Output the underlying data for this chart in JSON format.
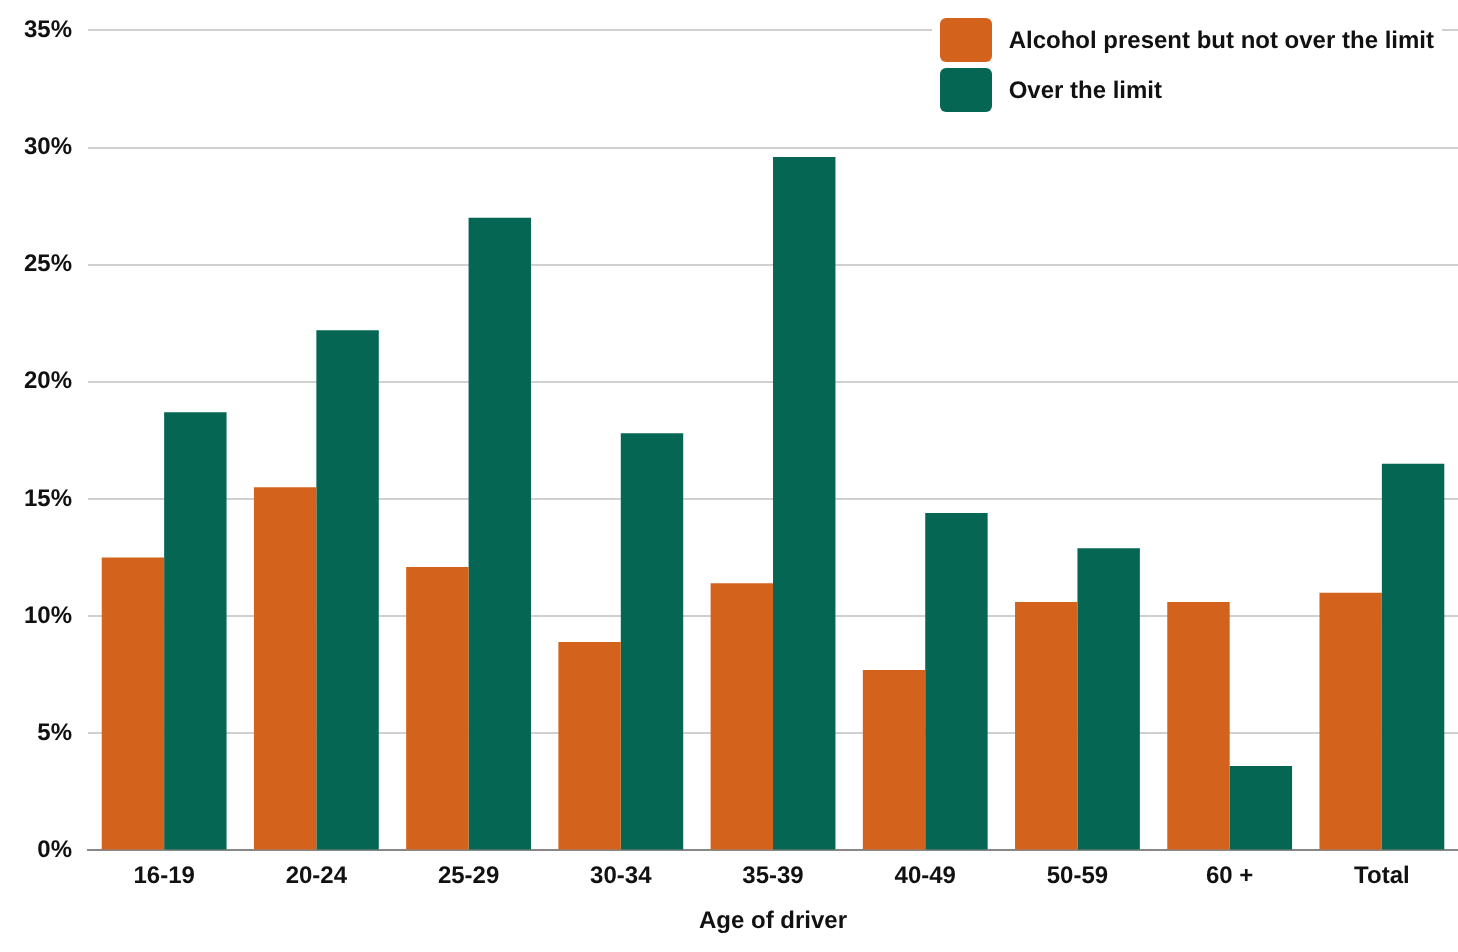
{
  "chart_data": {
    "type": "bar",
    "xlabel": "Age of driver",
    "categories": [
      "16-19",
      "20-24",
      "25-29",
      "30-34",
      "35-39",
      "40-49",
      "50-59",
      "60 +",
      "Total"
    ],
    "series": [
      {
        "name": "Alcohol present but not over the limit",
        "color": "#d2621c",
        "values": [
          12.5,
          15.5,
          12.1,
          8.9,
          11.4,
          7.7,
          10.6,
          10.6,
          11.0
        ]
      },
      {
        "name": "Over the limit",
        "color": "#056653",
        "values": [
          18.7,
          22.2,
          27.0,
          17.8,
          29.6,
          14.4,
          12.9,
          3.6,
          16.5
        ]
      }
    ],
    "ylim": [
      0,
      35
    ],
    "yticks": [
      {
        "value": 0,
        "label": "0%"
      },
      {
        "value": 5,
        "label": "5%"
      },
      {
        "value": 10,
        "label": "10%"
      },
      {
        "value": 15,
        "label": "15%"
      },
      {
        "value": 20,
        "label": "20%"
      },
      {
        "value": 25,
        "label": "25%"
      },
      {
        "value": 30,
        "label": "30%"
      },
      {
        "value": 35,
        "label": "35%"
      }
    ],
    "grid": "y",
    "legend": "top right"
  }
}
